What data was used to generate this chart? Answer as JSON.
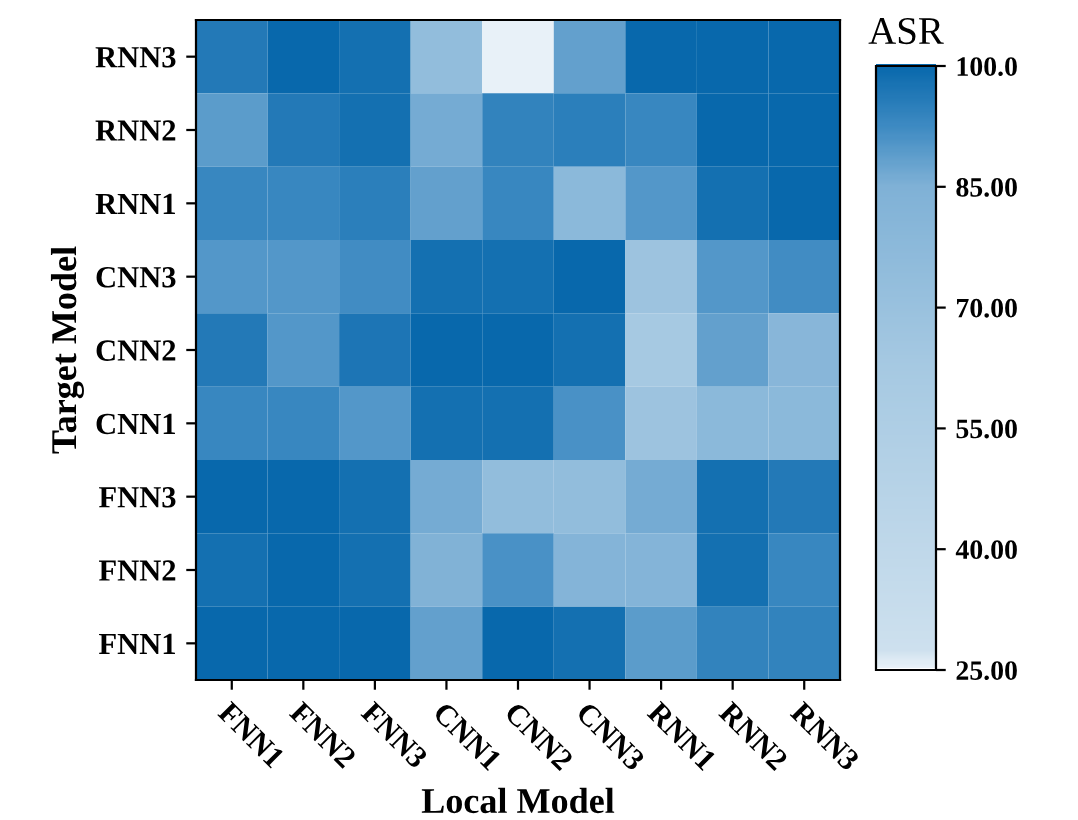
{
  "chart_data": {
    "type": "heatmap",
    "xlabel": "Local Model",
    "ylabel": "Target Model",
    "clabel": "ASR",
    "categories": [
      "FNN1",
      "FNN2",
      "FNN3",
      "CNN1",
      "CNN2",
      "CNN3",
      "RNN1",
      "RNN2",
      "RNN3"
    ],
    "y_categories": [
      "RNN3",
      "RNN2",
      "RNN1",
      "CNN3",
      "CNN2",
      "CNN1",
      "FNN3",
      "FNN2",
      "FNN1"
    ],
    "cells": [
      [
        96,
        100,
        98,
        74,
        25,
        88,
        100,
        100,
        100
      ],
      [
        89,
        96,
        98,
        86,
        94,
        95,
        93,
        100,
        100
      ],
      [
        93,
        93,
        95,
        88,
        93,
        78,
        90,
        98,
        100
      ],
      [
        90,
        90,
        92,
        98,
        98,
        100,
        68,
        90,
        92
      ],
      [
        96,
        90,
        97,
        100,
        100,
        98,
        62,
        88,
        80
      ],
      [
        93,
        93,
        90,
        98,
        98,
        91,
        68,
        78,
        78
      ],
      [
        100,
        100,
        98,
        86,
        74,
        74,
        86,
        98,
        96
      ],
      [
        98,
        100,
        98,
        84,
        91,
        82,
        82,
        98,
        93
      ],
      [
        100,
        100,
        100,
        88,
        100,
        98,
        89,
        94,
        94
      ]
    ],
    "clim": [
      25,
      100
    ],
    "cticks": [
      {
        "value": 25,
        "label": "25.00"
      },
      {
        "value": 40,
        "label": "40.00"
      },
      {
        "value": 55,
        "label": "55.00"
      },
      {
        "value": 70,
        "label": "70.00"
      },
      {
        "value": 85,
        "label": "85.00"
      },
      {
        "value": 100,
        "label": "100.0"
      }
    ]
  }
}
